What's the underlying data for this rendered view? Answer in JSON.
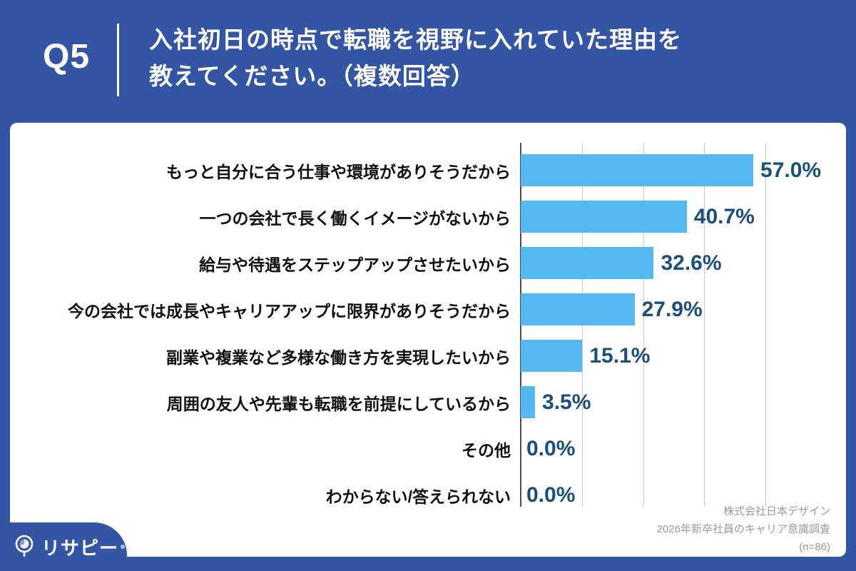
{
  "header": {
    "question_no": "Q5",
    "title_line1": "入社初日の時点で転職を視野に入れていた理由を",
    "title_line2": "教えてください。（複数回答）"
  },
  "chart_data": {
    "type": "bar",
    "orientation": "horizontal",
    "categories": [
      "もっと自分に合う仕事や環境がありそうだから",
      "一つの会社で長く働くイメージがないから",
      "給与や待遇をステップアップさせたいから",
      "今の会社では成長やキャリアアップに限界がありそうだから",
      "副業や複業など多様な働き方を実現したいから",
      "周囲の友人や先輩も転職を前提にしているから",
      "その他",
      "わからない/答えられない"
    ],
    "values": [
      57.0,
      40.7,
      32.6,
      27.9,
      15.1,
      3.5,
      0.0,
      0.0
    ],
    "value_labels": [
      "57.0%",
      "40.7%",
      "32.6%",
      "27.9%",
      "15.1%",
      "3.5%",
      "0.0%",
      "0.0%"
    ],
    "xlim": [
      0,
      75
    ],
    "gridlines_percent": [
      0,
      15,
      30,
      45,
      60
    ],
    "grid": true,
    "legend": "none",
    "bar_color": "#55B8F0",
    "value_label_color": "#1A4F7D"
  },
  "source": {
    "line1": "株式会社日本デザイン",
    "line2": "2026年新卒社員のキャリア意識調査",
    "line3": "(n=86)"
  },
  "logo": {
    "text": "リサピー"
  },
  "colors": {
    "frame_blue": "#3455A3",
    "bar_blue": "#55B8F0",
    "value_navy": "#1A4F7D",
    "source_gray": "#9b9b9b"
  }
}
